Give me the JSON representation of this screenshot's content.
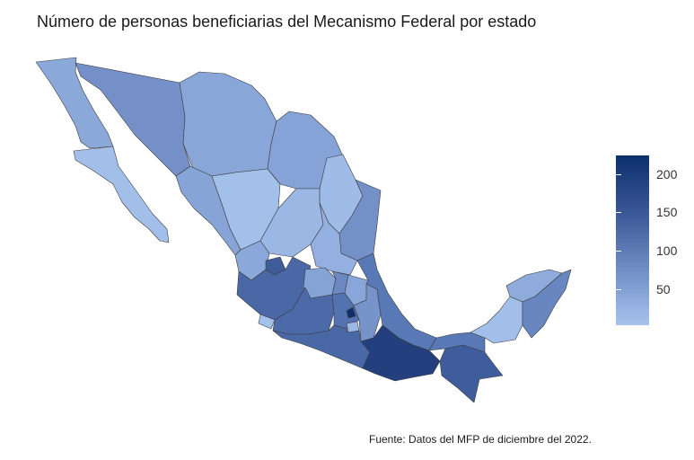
{
  "title": "Número de personas beneficiarias del Mecanismo Federal por estado",
  "caption": "Fuente: Datos del MFP de diciembre del 2022.",
  "legend": {
    "ticks": [
      "200",
      "150",
      "100",
      "50"
    ],
    "tick_values": [
      200,
      150,
      100,
      50
    ],
    "min": 0,
    "max": 220,
    "color_low": "#a6c3ee",
    "color_high": "#0d2f6b"
  },
  "colors": {
    "border": "#3c3c3c"
  }
}
